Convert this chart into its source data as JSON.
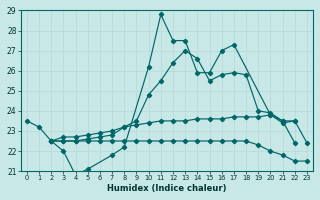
{
  "bg_color": "#c8e8e8",
  "grid_color": "#a8d8d8",
  "line_color": "#006666",
  "xlabel": "Humidex (Indice chaleur)",
  "xlim": [
    -0.5,
    23.5
  ],
  "ylim": [
    21,
    29
  ],
  "xticks": [
    0,
    1,
    2,
    3,
    4,
    5,
    6,
    7,
    8,
    9,
    10,
    11,
    12,
    13,
    14,
    15,
    16,
    17,
    18,
    19,
    20,
    21,
    22,
    23
  ],
  "yticks": [
    21,
    22,
    23,
    24,
    25,
    26,
    27,
    28,
    29
  ],
  "line1_x": [
    0,
    1,
    2,
    3,
    4,
    5,
    7,
    8,
    10,
    11,
    12,
    13,
    14,
    15,
    16,
    17,
    20,
    21,
    22
  ],
  "line1_y": [
    23.5,
    23.2,
    22.5,
    22.0,
    20.8,
    21.1,
    21.8,
    22.2,
    26.2,
    28.8,
    27.5,
    27.5,
    25.9,
    25.9,
    27.0,
    27.3,
    23.8,
    23.5,
    22.4
  ],
  "line2_x": [
    2,
    3,
    4,
    5,
    6,
    7,
    8,
    9,
    10,
    11,
    12,
    13,
    14,
    15,
    16,
    17,
    18,
    19,
    20,
    21,
    22
  ],
  "line2_y": [
    22.5,
    22.7,
    22.7,
    22.8,
    22.9,
    23.0,
    23.2,
    23.3,
    23.4,
    23.5,
    23.5,
    23.5,
    23.6,
    23.6,
    23.6,
    23.7,
    23.7,
    23.7,
    23.8,
    23.4,
    23.5
  ],
  "line3_x": [
    2,
    3,
    4,
    5,
    6,
    7,
    8,
    9,
    10,
    11,
    12,
    13,
    14,
    15,
    16,
    17,
    18,
    19,
    20,
    21,
    22,
    23
  ],
  "line3_y": [
    22.5,
    22.5,
    22.5,
    22.5,
    22.5,
    22.5,
    22.5,
    22.5,
    22.5,
    22.5,
    22.5,
    22.5,
    22.5,
    22.5,
    22.5,
    22.5,
    22.5,
    22.3,
    22.0,
    21.8,
    21.5,
    21.5
  ],
  "line4_x": [
    2,
    3,
    4,
    5,
    6,
    7,
    8,
    9,
    10,
    11,
    12,
    13,
    14,
    15,
    16,
    17,
    18,
    19,
    20,
    21,
    22,
    23
  ],
  "line4_y": [
    22.5,
    22.5,
    22.5,
    22.6,
    22.7,
    22.8,
    23.2,
    23.5,
    24.8,
    25.5,
    26.4,
    27.0,
    26.6,
    25.5,
    25.8,
    25.9,
    25.8,
    24.0,
    23.9,
    23.5,
    23.5,
    22.4
  ]
}
